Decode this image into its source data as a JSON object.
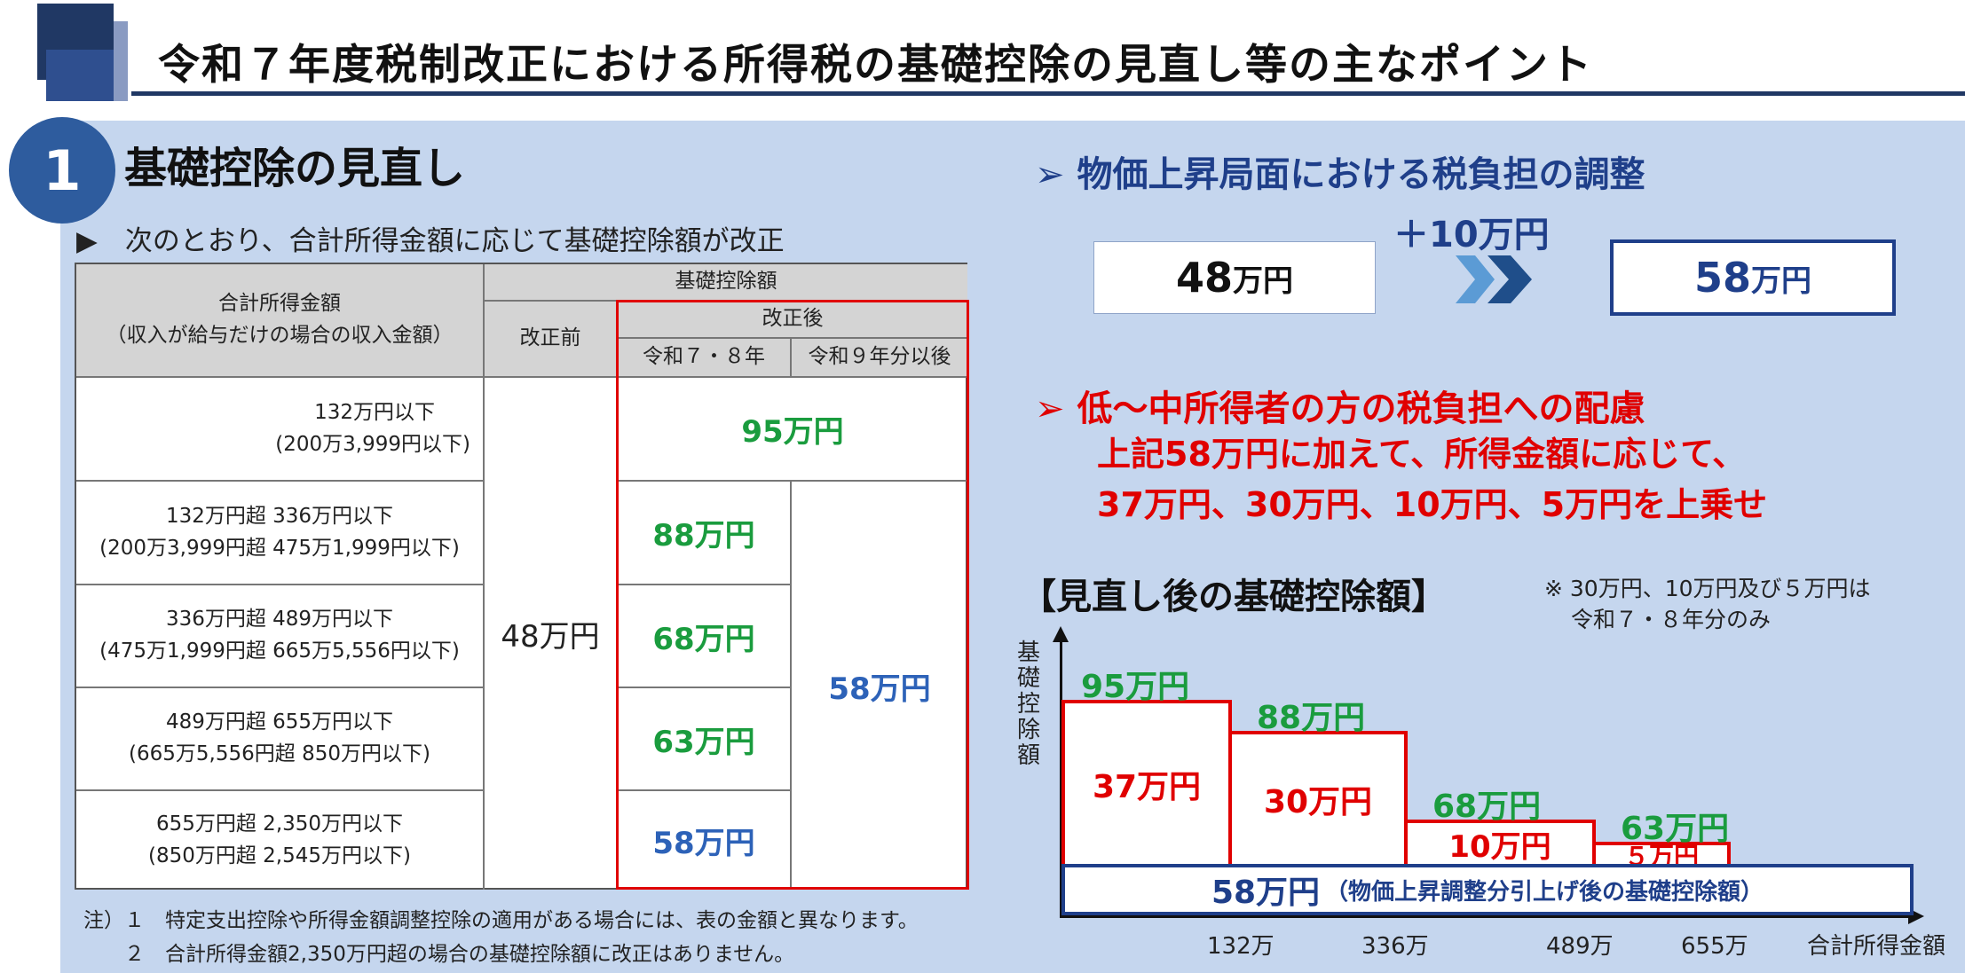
{
  "header": {
    "title": "令和７年度税制改正における所得税の基礎控除の見直し等の主なポイント"
  },
  "section": {
    "number": "1",
    "title": "基礎控除の見直し",
    "intro": "▶　次のとおり、合計所得金額に応じて基礎控除額が改正"
  },
  "table": {
    "col_income_line1": "合計所得金額",
    "col_income_line2": "（収入が給与だけの場合の収入金額）",
    "col_deduction": "基礎控除額",
    "col_before": "改正前",
    "col_after": "改正後",
    "col_r78": "令和７・８年",
    "col_r9": "令和９年分以後",
    "before_value": "48万円",
    "r9_common": "58万円",
    "rows": [
      {
        "line1": "132万円以下",
        "line2": "(200万3,999円以下)",
        "after": "95万円"
      },
      {
        "line1": "132万円超  336万円以下",
        "line2": "(200万3,999円超  475万1,999円以下)",
        "r78": "88万円"
      },
      {
        "line1": "336万円超  489万円以下",
        "line2": "(475万1,999円超  665万5,556円以下)",
        "r78": "68万円"
      },
      {
        "line1": "489万円超  655万円以下",
        "line2": "(665万5,556円超  850万円以下)",
        "r78": "63万円"
      },
      {
        "line1": "655万円超  2,350万円以下",
        "line2": "(850万円超  2,545万円以下)",
        "r78": "58万円"
      }
    ]
  },
  "notes": {
    "line1": "注）１　特定支出控除や所得金額調整控除の適用がある場合には、表の金額と異なります。",
    "line2": "　　２　合計所得金額2,350万円超の場合の基礎控除額に改正はありません。"
  },
  "right": {
    "heading1": "➢  物価上昇局面における税負担の調整",
    "plus": "＋10万円",
    "from_num": "48",
    "from_unit": "万円",
    "to_num": "58",
    "to_unit": "万円",
    "heading2": "➢  低～中所得者の方の税負担への配慮",
    "red_line1": "上記58万円に加えて、所得金額に応じて、",
    "red_line2": "37万円、30万円、10万円、5万円を上乗せ"
  },
  "chart_data": {
    "type": "bar",
    "title": "【見直し後の基礎控除額】",
    "note_line1": "※ 30万円、10万円及び５万円は",
    "note_line2": "令和７・８年分のみ",
    "ylabel": "基礎控除額",
    "xlabel": "合計所得金額",
    "x_ticks": [
      "132万",
      "336万",
      "489万",
      "655万"
    ],
    "x_breaks": [
      0,
      132,
      336,
      489,
      655
    ],
    "x_end": 1000,
    "base": {
      "value": 58,
      "label": "58万円",
      "sublabel": "（物価上昇調整分引上げ後の基礎控除額）"
    },
    "bars": [
      {
        "total": "95万円",
        "add_label": "37万円",
        "total_value": 95,
        "add_value": 37
      },
      {
        "total": "88万円",
        "add_label": "30万円",
        "total_value": 88,
        "add_value": 30
      },
      {
        "total": "68万円",
        "add_label": "10万円",
        "total_value": 68,
        "add_value": 10
      },
      {
        "total": "63万円",
        "add_label": "５万円",
        "total_value": 63,
        "add_value": 5
      }
    ],
    "colors": {
      "add": "#e00000",
      "base": "#1f3f8a",
      "total_label": "#1a9c3e"
    }
  }
}
